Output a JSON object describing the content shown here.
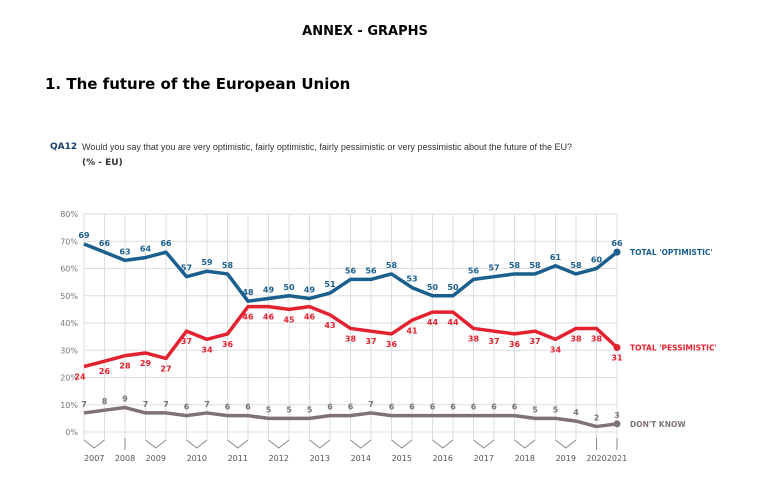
{
  "header": {
    "annex_title": "ANNEX - GRAPHS",
    "section_title": "1. The future of the European Union"
  },
  "question": {
    "code": "QA12",
    "text": "Would you say that you are very optimistic, fairly optimistic, fairly pessimistic or very pessimistic about the future of the EU?",
    "unit": "(% - EU)"
  },
  "chart_data": {
    "type": "line",
    "title": "",
    "xlabel": "",
    "ylabel": "",
    "ylim": [
      0,
      80
    ],
    "yticks": [
      "0%",
      "10%",
      "20%",
      "30%",
      "40%",
      "50%",
      "60%",
      "70%",
      "80%"
    ],
    "grid": true,
    "legend": "right, at line ends",
    "year_labels": [
      {
        "label": "2007",
        "points": [
          0,
          1
        ]
      },
      {
        "label": "2008",
        "points": [
          2
        ]
      },
      {
        "label": "2009",
        "points": [
          3,
          4
        ]
      },
      {
        "label": "2010",
        "points": [
          5,
          6
        ]
      },
      {
        "label": "2011",
        "points": [
          7,
          8
        ]
      },
      {
        "label": "2012",
        "points": [
          9,
          10
        ]
      },
      {
        "label": "2013",
        "points": [
          11,
          12
        ]
      },
      {
        "label": "2014",
        "points": [
          13,
          14
        ]
      },
      {
        "label": "2015",
        "points": [
          15,
          16
        ]
      },
      {
        "label": "2016",
        "points": [
          17,
          18
        ]
      },
      {
        "label": "2017",
        "points": [
          19,
          20
        ]
      },
      {
        "label": "2018",
        "points": [
          21,
          22
        ]
      },
      {
        "label": "2019",
        "points": [
          23,
          24
        ]
      },
      {
        "label": "2020",
        "points": [
          25
        ]
      },
      {
        "label": "2021",
        "points": [
          26
        ]
      }
    ],
    "series": [
      {
        "name": "TOTAL 'OPTIMISTIC'",
        "color": "#1a5f8e",
        "values": [
          69,
          66,
          63,
          64,
          66,
          57,
          59,
          58,
          48,
          49,
          50,
          49,
          51,
          56,
          56,
          58,
          53,
          50,
          50,
          56,
          57,
          58,
          58,
          61,
          58,
          60,
          66
        ]
      },
      {
        "name": "TOTAL 'PESSIMISTIC'",
        "color": "#e3212f",
        "values": [
          24,
          26,
          28,
          29,
          27,
          37,
          34,
          36,
          46,
          46,
          45,
          46,
          43,
          38,
          37,
          36,
          41,
          44,
          44,
          38,
          37,
          36,
          37,
          34,
          38,
          38,
          31
        ]
      },
      {
        "name": "DON'T KNOW",
        "color": "#7f7275",
        "values": [
          7,
          8,
          9,
          7,
          7,
          6,
          7,
          6,
          6,
          5,
          5,
          5,
          6,
          6,
          7,
          6,
          6,
          6,
          6,
          6,
          6,
          6,
          5,
          5,
          4,
          2,
          3
        ]
      }
    ]
  }
}
